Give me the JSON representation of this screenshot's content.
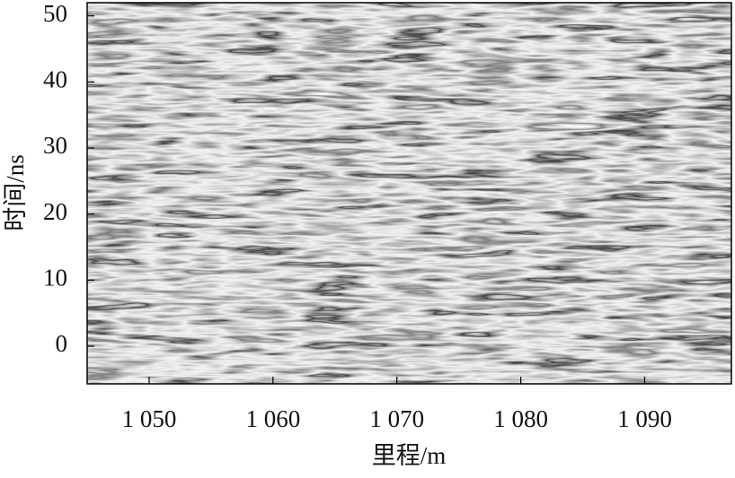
{
  "chart_data": {
    "type": "radargram",
    "x_label": "里程/m",
    "y_label": "时间/ns",
    "xlim": [
      1045,
      1097
    ],
    "xticks": [
      {
        "value": 1050,
        "label": "1 050"
      },
      {
        "value": 1060,
        "label": "1 060"
      },
      {
        "value": 1070,
        "label": "1 070"
      },
      {
        "value": 1080,
        "label": "1 080"
      },
      {
        "value": 1090,
        "label": "1 090"
      }
    ],
    "ylim": [
      -5.7,
      52
    ],
    "yticks": [
      0,
      10,
      20,
      30,
      40,
      50
    ]
  }
}
